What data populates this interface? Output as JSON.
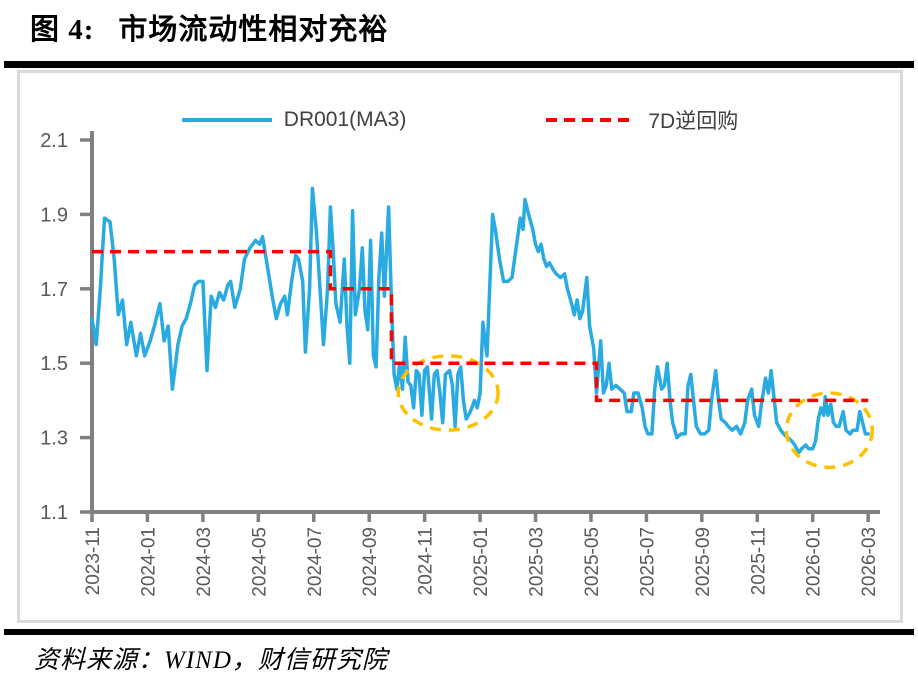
{
  "title": {
    "prefix": "图 4:",
    "text": "市场流动性相对充裕"
  },
  "source": "资料来源：WIND，财信研究院",
  "colors": {
    "blue": "#29ABE2",
    "red": "#FF0000",
    "highlight": "#FFC000",
    "axis": "#808080",
    "tick_label": "#595959",
    "legend_text": "#404040",
    "box_border": "#D9D9D9",
    "rule": "#000000"
  },
  "chart_data": {
    "type": "line",
    "title": "市场流动性相对充裕",
    "x_unit": "months since 2023-11 (m=0 → 2023-11, m=28 → 2026-03)",
    "x_tick_months": [
      0,
      2,
      4,
      6,
      8,
      10,
      12,
      14,
      16,
      18,
      20,
      22,
      24,
      26,
      28
    ],
    "x_tick_labels": [
      "2023-11",
      "2024-01",
      "2024-03",
      "2024-05",
      "2024-07",
      "2024-09",
      "2024-11",
      "2025-01",
      "2025-03",
      "2025-05",
      "2025-07",
      "2025-09",
      "2025-11",
      "2026-01",
      "2026-03"
    ],
    "ylim": [
      1.1,
      2.1
    ],
    "y_ticks": [
      1.1,
      1.3,
      1.5,
      1.7,
      1.9,
      2.1
    ],
    "grid": false,
    "legend_position": "top-center",
    "legend": [
      {
        "name": "DR001(MA3)",
        "color": "#29ABE2",
        "style": "solid"
      },
      {
        "name": "7D逆回购",
        "color": "#FF0000",
        "style": "dashed"
      }
    ],
    "series": [
      {
        "name": "DR001(MA3)",
        "style": "solid",
        "color": "#29ABE2",
        "points": [
          [
            0,
            1.62
          ],
          [
            0.15,
            1.55
          ],
          [
            0.3,
            1.7
          ],
          [
            0.45,
            1.89
          ],
          [
            0.65,
            1.88
          ],
          [
            0.8,
            1.78
          ],
          [
            0.95,
            1.63
          ],
          [
            1.1,
            1.67
          ],
          [
            1.25,
            1.55
          ],
          [
            1.4,
            1.61
          ],
          [
            1.6,
            1.52
          ],
          [
            1.75,
            1.58
          ],
          [
            1.9,
            1.52
          ],
          [
            2.1,
            1.56
          ],
          [
            2.25,
            1.6
          ],
          [
            2.45,
            1.66
          ],
          [
            2.6,
            1.56
          ],
          [
            2.75,
            1.6
          ],
          [
            2.9,
            1.43
          ],
          [
            3.1,
            1.55
          ],
          [
            3.25,
            1.6
          ],
          [
            3.4,
            1.62
          ],
          [
            3.55,
            1.66
          ],
          [
            3.7,
            1.71
          ],
          [
            3.85,
            1.72
          ],
          [
            4,
            1.72
          ],
          [
            4.15,
            1.48
          ],
          [
            4.3,
            1.68
          ],
          [
            4.45,
            1.65
          ],
          [
            4.6,
            1.69
          ],
          [
            4.75,
            1.67
          ],
          [
            4.9,
            1.71
          ],
          [
            5,
            1.72
          ],
          [
            5.15,
            1.65
          ],
          [
            5.35,
            1.7
          ],
          [
            5.5,
            1.78
          ],
          [
            5.7,
            1.81
          ],
          [
            5.9,
            1.83
          ],
          [
            6.05,
            1.82
          ],
          [
            6.15,
            1.84
          ],
          [
            6.35,
            1.75
          ],
          [
            6.5,
            1.68
          ],
          [
            6.65,
            1.62
          ],
          [
            6.8,
            1.66
          ],
          [
            6.95,
            1.68
          ],
          [
            7.05,
            1.63
          ],
          [
            7.2,
            1.72
          ],
          [
            7.35,
            1.79
          ],
          [
            7.45,
            1.78
          ],
          [
            7.6,
            1.72
          ],
          [
            7.7,
            1.53
          ],
          [
            7.85,
            1.7
          ],
          [
            7.95,
            1.97
          ],
          [
            8.1,
            1.85
          ],
          [
            8.25,
            1.67
          ],
          [
            8.35,
            1.55
          ],
          [
            8.5,
            1.7
          ],
          [
            8.6,
            1.92
          ],
          [
            8.7,
            1.8
          ],
          [
            8.8,
            1.66
          ],
          [
            8.95,
            1.61
          ],
          [
            9.1,
            1.78
          ],
          [
            9.2,
            1.6
          ],
          [
            9.3,
            1.5
          ],
          [
            9.4,
            1.91
          ],
          [
            9.5,
            1.63
          ],
          [
            9.65,
            1.7
          ],
          [
            9.75,
            1.81
          ],
          [
            9.85,
            1.64
          ],
          [
            9.95,
            1.59
          ],
          [
            10.05,
            1.83
          ],
          [
            10.15,
            1.52
          ],
          [
            10.25,
            1.49
          ],
          [
            10.35,
            1.73
          ],
          [
            10.45,
            1.85
          ],
          [
            10.55,
            1.68
          ],
          [
            10.7,
            1.92
          ],
          [
            10.8,
            1.67
          ],
          [
            10.9,
            1.47
          ],
          [
            11,
            1.43
          ],
          [
            11.1,
            1.5
          ],
          [
            11.2,
            1.43
          ],
          [
            11.3,
            1.57
          ],
          [
            11.4,
            1.45
          ],
          [
            11.5,
            1.44
          ],
          [
            11.6,
            1.38
          ],
          [
            11.7,
            1.48
          ],
          [
            11.8,
            1.47
          ],
          [
            11.9,
            1.36
          ],
          [
            12,
            1.48
          ],
          [
            12.1,
            1.49
          ],
          [
            12.25,
            1.35
          ],
          [
            12.35,
            1.47
          ],
          [
            12.45,
            1.48
          ],
          [
            12.55,
            1.42
          ],
          [
            12.65,
            1.34
          ],
          [
            12.75,
            1.47
          ],
          [
            12.9,
            1.48
          ],
          [
            13,
            1.44
          ],
          [
            13.1,
            1.33
          ],
          [
            13.2,
            1.47
          ],
          [
            13.3,
            1.49
          ],
          [
            13.4,
            1.4
          ],
          [
            13.5,
            1.35
          ],
          [
            13.65,
            1.37
          ],
          [
            13.8,
            1.4
          ],
          [
            13.9,
            1.38
          ],
          [
            14,
            1.42
          ],
          [
            14.1,
            1.61
          ],
          [
            14.25,
            1.52
          ],
          [
            14.45,
            1.9
          ],
          [
            14.55,
            1.86
          ],
          [
            14.7,
            1.78
          ],
          [
            14.85,
            1.72
          ],
          [
            15,
            1.72
          ],
          [
            15.15,
            1.73
          ],
          [
            15.3,
            1.81
          ],
          [
            15.45,
            1.89
          ],
          [
            15.55,
            1.86
          ],
          [
            15.62,
            1.94
          ],
          [
            15.75,
            1.9
          ],
          [
            15.9,
            1.86
          ],
          [
            16,
            1.82
          ],
          [
            16.1,
            1.8
          ],
          [
            16.2,
            1.82
          ],
          [
            16.3,
            1.78
          ],
          [
            16.4,
            1.76
          ],
          [
            16.5,
            1.77
          ],
          [
            16.65,
            1.75
          ],
          [
            16.75,
            1.74
          ],
          [
            16.9,
            1.73
          ],
          [
            17.05,
            1.74
          ],
          [
            17.15,
            1.7
          ],
          [
            17.3,
            1.66
          ],
          [
            17.4,
            1.63
          ],
          [
            17.5,
            1.67
          ],
          [
            17.6,
            1.62
          ],
          [
            17.7,
            1.64
          ],
          [
            17.85,
            1.73
          ],
          [
            17.95,
            1.6
          ],
          [
            18.1,
            1.54
          ],
          [
            18.2,
            1.42
          ],
          [
            18.35,
            1.56
          ],
          [
            18.45,
            1.42
          ],
          [
            18.55,
            1.44
          ],
          [
            18.65,
            1.5
          ],
          [
            18.75,
            1.43
          ],
          [
            18.9,
            1.44
          ],
          [
            19.05,
            1.43
          ],
          [
            19.2,
            1.42
          ],
          [
            19.3,
            1.37
          ],
          [
            19.45,
            1.37
          ],
          [
            19.55,
            1.42
          ],
          [
            19.7,
            1.42
          ],
          [
            19.85,
            1.38
          ],
          [
            19.95,
            1.33
          ],
          [
            20.05,
            1.31
          ],
          [
            20.2,
            1.31
          ],
          [
            20.3,
            1.43
          ],
          [
            20.4,
            1.49
          ],
          [
            20.55,
            1.43
          ],
          [
            20.65,
            1.44
          ],
          [
            20.75,
            1.5
          ],
          [
            20.85,
            1.4
          ],
          [
            20.95,
            1.34
          ],
          [
            21.1,
            1.3
          ],
          [
            21.25,
            1.31
          ],
          [
            21.4,
            1.31
          ],
          [
            21.5,
            1.44
          ],
          [
            21.6,
            1.47
          ],
          [
            21.7,
            1.4
          ],
          [
            21.8,
            1.33
          ],
          [
            21.95,
            1.31
          ],
          [
            22.1,
            1.31
          ],
          [
            22.25,
            1.32
          ],
          [
            22.35,
            1.4
          ],
          [
            22.5,
            1.48
          ],
          [
            22.6,
            1.4
          ],
          [
            22.7,
            1.35
          ],
          [
            22.85,
            1.34
          ],
          [
            22.95,
            1.33
          ],
          [
            23.1,
            1.32
          ],
          [
            23.25,
            1.33
          ],
          [
            23.4,
            1.31
          ],
          [
            23.55,
            1.34
          ],
          [
            23.65,
            1.4
          ],
          [
            23.8,
            1.43
          ],
          [
            23.9,
            1.36
          ],
          [
            24.05,
            1.33
          ],
          [
            24.15,
            1.39
          ],
          [
            24.3,
            1.46
          ],
          [
            24.4,
            1.42
          ],
          [
            24.5,
            1.48
          ],
          [
            24.6,
            1.41
          ],
          [
            24.7,
            1.34
          ],
          [
            24.85,
            1.32
          ],
          [
            24.95,
            1.31
          ],
          [
            25.1,
            1.3
          ],
          [
            25.25,
            1.29
          ],
          [
            25.35,
            1.28
          ],
          [
            25.5,
            1.26
          ],
          [
            25.6,
            1.27
          ],
          [
            25.75,
            1.28
          ],
          [
            25.85,
            1.27
          ],
          [
            26,
            1.27
          ],
          [
            26.1,
            1.29
          ],
          [
            26.2,
            1.35
          ],
          [
            26.3,
            1.38
          ],
          [
            26.4,
            1.36
          ],
          [
            26.45,
            1.41
          ],
          [
            26.55,
            1.36
          ],
          [
            26.65,
            1.39
          ],
          [
            26.75,
            1.34
          ],
          [
            26.85,
            1.33
          ],
          [
            26.95,
            1.33
          ],
          [
            27.1,
            1.37
          ],
          [
            27.2,
            1.32
          ],
          [
            27.35,
            1.31
          ],
          [
            27.45,
            1.32
          ],
          [
            27.6,
            1.32
          ],
          [
            27.7,
            1.37
          ],
          [
            27.8,
            1.34
          ],
          [
            27.9,
            1.31
          ],
          [
            28,
            1.31
          ]
        ]
      },
      {
        "name": "7D逆回购",
        "style": "dashed",
        "color": "#FF0000",
        "points": [
          [
            0,
            1.8
          ],
          [
            8.6,
            1.8
          ],
          [
            8.6,
            1.7
          ],
          [
            10.8,
            1.7
          ],
          [
            10.8,
            1.5
          ],
          [
            18.2,
            1.5
          ],
          [
            18.2,
            1.4
          ],
          [
            28,
            1.4
          ]
        ]
      }
    ],
    "annotations": [
      {
        "type": "ellipse",
        "color": "#FFC000",
        "cx_m": 12.85,
        "cy_v": 1.42,
        "rx_m": 1.8,
        "ry_v": 0.1
      },
      {
        "type": "ellipse",
        "color": "#FFC000",
        "cx_m": 26.6,
        "cy_v": 1.32,
        "rx_m": 1.55,
        "ry_v": 0.1
      }
    ]
  }
}
